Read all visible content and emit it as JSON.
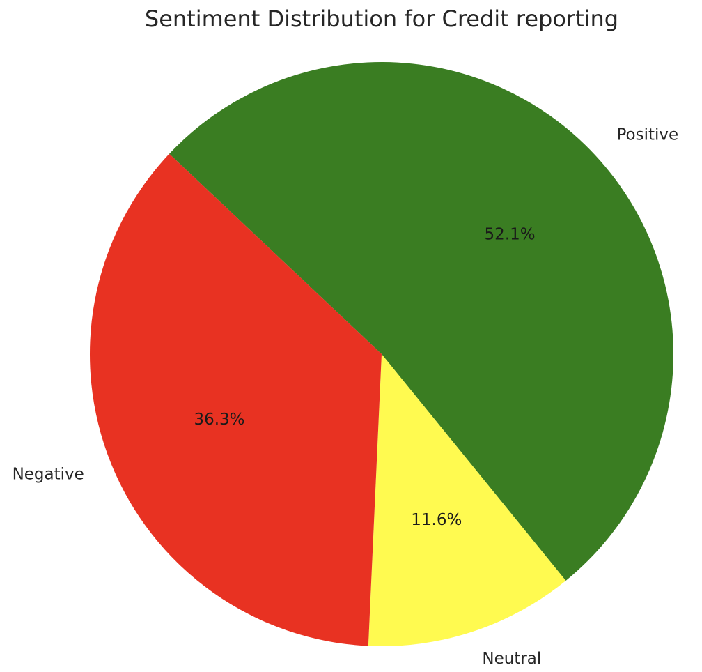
{
  "chart_data": {
    "type": "pie",
    "title": "Sentiment Distribution for Credit reporting",
    "slices": [
      {
        "label": "Positive",
        "value": 52.1,
        "pct_label": "52.1%",
        "color": "#3a7d22"
      },
      {
        "label": "Neutral",
        "value": 11.6,
        "pct_label": "11.6%",
        "color": "#fffa50"
      },
      {
        "label": "Negative",
        "value": 36.3,
        "pct_label": "36.3%",
        "color": "#e83222"
      }
    ]
  }
}
